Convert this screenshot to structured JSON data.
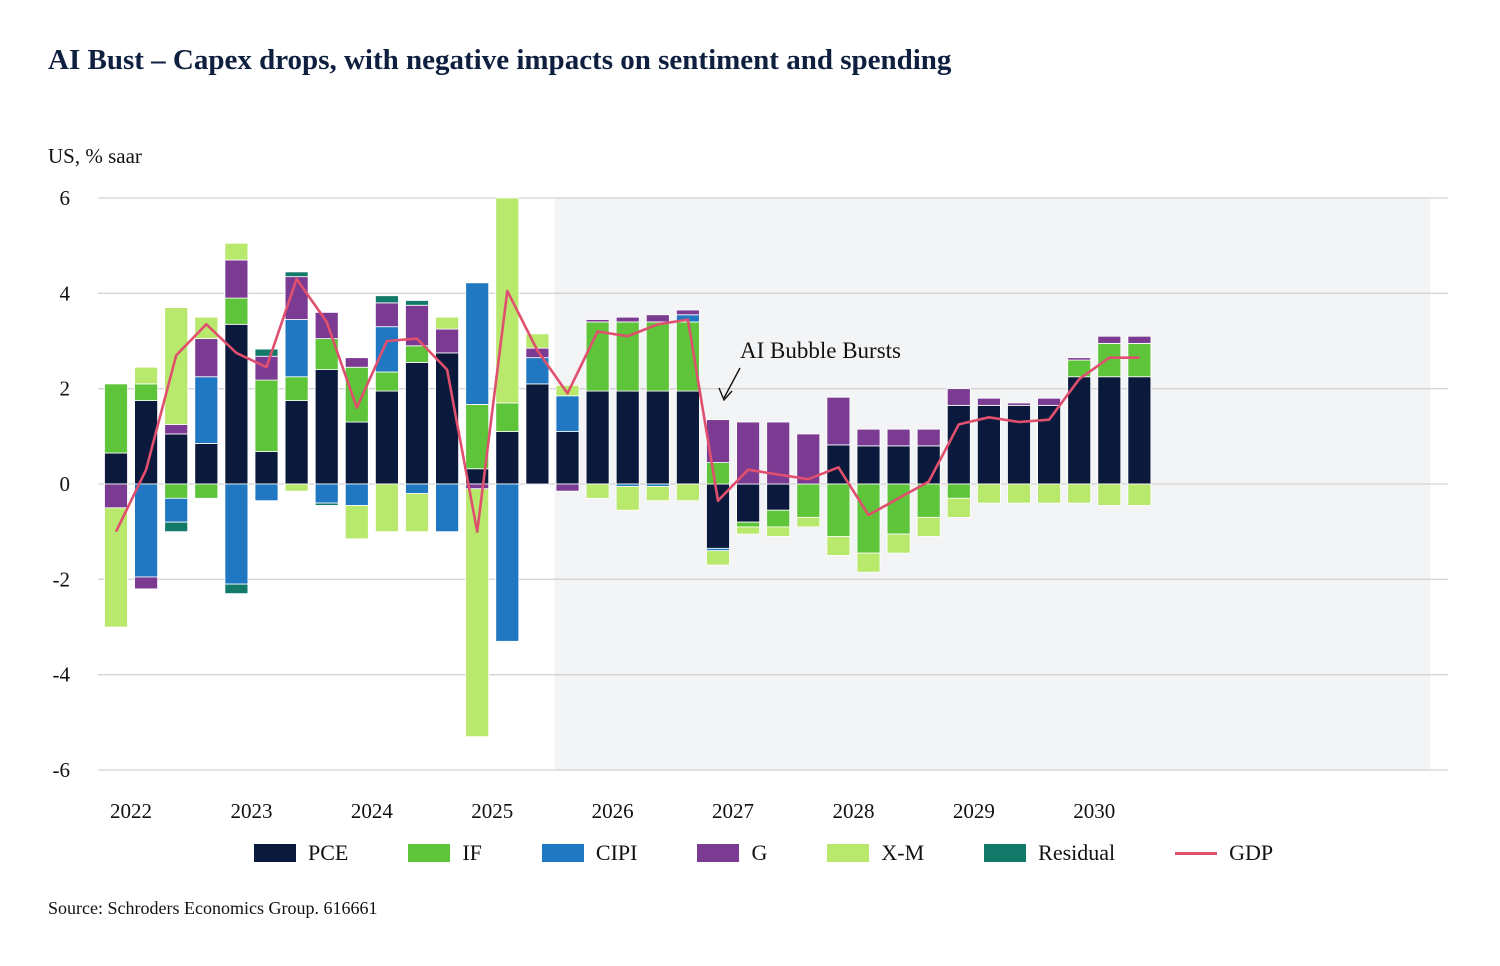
{
  "title": "AI Bust – Capex drops, with negative impacts on sentiment and spending",
  "unit_label": "US, % saar",
  "source": "Source: Schroders Economics Group. 616661",
  "colors": {
    "PCE": "#0b1a3c",
    "IF": "#5ec43a",
    "CIPI": "#1f78c1",
    "G": "#7c3b93",
    "X-M": "#b8e86c",
    "Residual": "#137a6a",
    "GDP": "#e0506e",
    "forecast_shade": "#f3f4f6",
    "grid": "#d4d4d4"
  },
  "chart_data": {
    "type": "bar",
    "stacked": true,
    "ylim": [
      -6,
      6
    ],
    "yticks": [
      6,
      4,
      2,
      0,
      -2,
      -4,
      -6
    ],
    "xtick_labels": [
      "2022",
      "2023",
      "2024",
      "2025",
      "2026",
      "2027",
      "2028",
      "2029",
      "2030"
    ],
    "forecast_start_index": 15,
    "annotation": {
      "text": "AI Bubble Bursts",
      "index": 20
    },
    "categories": [
      "2022Q1",
      "2022Q2",
      "2022Q3",
      "2022Q4",
      "2023Q1",
      "2023Q2",
      "2023Q3",
      "2023Q4",
      "2024Q1",
      "2024Q2",
      "2024Q3",
      "2024Q4",
      "2025Q1",
      "2025Q2",
      "2025Q3",
      "2025Q4",
      "2026Q1",
      "2026Q2",
      "2026Q3",
      "2026Q4",
      "2027Q1",
      "2027Q2",
      "2027Q3",
      "2027Q4",
      "2028Q1",
      "2028Q2",
      "2028Q3",
      "2028Q4",
      "2029Q1",
      "2029Q2",
      "2029Q3",
      "2029Q4",
      "2030Q1",
      "2030Q2",
      "2030Q3"
    ],
    "series": [
      {
        "name": "PCE",
        "values": [
          0.65,
          1.75,
          1.05,
          0.85,
          3.35,
          0.68,
          1.75,
          2.4,
          1.3,
          1.95,
          2.55,
          2.75,
          0.32,
          1.1,
          2.1,
          1.1,
          1.95,
          1.95,
          1.95,
          1.95,
          -1.35,
          -0.8,
          -0.55,
          0.0,
          0.82,
          0.8,
          0.8,
          0.8,
          1.65,
          1.65,
          1.65,
          1.65,
          2.25,
          2.25,
          2.25
        ]
      },
      {
        "name": "IF",
        "values": [
          1.45,
          0.35,
          -0.3,
          -0.3,
          0.55,
          1.5,
          0.5,
          0.65,
          1.15,
          0.4,
          0.35,
          0.0,
          1.35,
          0.6,
          0.0,
          0.0,
          1.45,
          1.45,
          1.45,
          1.45,
          0.45,
          -0.1,
          -0.35,
          -0.7,
          -1.1,
          -1.45,
          -1.05,
          -0.7,
          -0.3,
          0.0,
          0.0,
          0.0,
          0.35,
          0.7,
          0.7
        ]
      },
      {
        "name": "CIPI",
        "values": [
          0.0,
          -1.95,
          -0.5,
          1.4,
          -2.1,
          -0.35,
          1.2,
          -0.4,
          -0.45,
          0.95,
          -0.2,
          -1.0,
          2.55,
          -3.3,
          0.55,
          0.75,
          0.0,
          -0.05,
          -0.05,
          0.15,
          -0.05,
          0.0,
          0.0,
          0.0,
          0.0,
          0.0,
          0.0,
          0.0,
          0.0,
          0.0,
          0.0,
          0.0,
          0.0,
          0.0,
          0.0
        ]
      },
      {
        "name": "G",
        "values": [
          -0.5,
          -0.25,
          0.2,
          0.8,
          0.8,
          0.5,
          0.9,
          0.55,
          0.2,
          0.5,
          0.85,
          0.5,
          -0.1,
          0.0,
          0.2,
          -0.15,
          0.05,
          0.1,
          0.15,
          0.1,
          0.9,
          1.3,
          1.3,
          1.05,
          1.0,
          0.35,
          0.35,
          0.35,
          0.35,
          0.15,
          0.05,
          0.15,
          0.05,
          0.15,
          0.15
        ]
      },
      {
        "name": "X-M",
        "values": [
          -2.5,
          0.35,
          2.45,
          0.45,
          0.35,
          0.0,
          -0.15,
          0.0,
          -0.7,
          -1.0,
          -0.8,
          0.25,
          -5.2,
          4.3,
          0.3,
          0.22,
          -0.3,
          -0.5,
          -0.3,
          -0.35,
          -0.3,
          -0.15,
          -0.2,
          -0.2,
          -0.4,
          -0.4,
          -0.4,
          -0.4,
          -0.4,
          -0.4,
          -0.4,
          -0.4,
          -0.4,
          -0.45,
          -0.45
        ]
      },
      {
        "name": "Residual",
        "values": [
          0.0,
          0.0,
          -0.2,
          0.0,
          -0.2,
          0.15,
          0.1,
          -0.05,
          0.0,
          0.15,
          0.1,
          0.0,
          0.0,
          0.0,
          0.0,
          0.0,
          0.0,
          0.0,
          0.0,
          0.0,
          0.0,
          0.0,
          0.0,
          0.0,
          0.0,
          0.0,
          0.0,
          0.0,
          0.0,
          0.0,
          0.0,
          0.0,
          0.0,
          0.0,
          0.0
        ]
      }
    ],
    "line_series": {
      "name": "GDP",
      "values": [
        -1.0,
        0.3,
        2.7,
        3.35,
        2.75,
        2.45,
        4.3,
        3.4,
        1.6,
        3.0,
        3.05,
        2.4,
        -1.0,
        4.05,
        2.8,
        1.9,
        3.2,
        3.1,
        3.35,
        3.45,
        -0.35,
        0.3,
        0.2,
        0.1,
        0.35,
        -0.65,
        -0.3,
        0.05,
        1.25,
        1.4,
        1.3,
        1.35,
        2.2,
        2.65,
        2.65
      ]
    }
  },
  "legend": [
    {
      "label": "PCE",
      "kind": "box",
      "color": "#0b1a3c"
    },
    {
      "label": "IF",
      "kind": "box",
      "color": "#5ec43a"
    },
    {
      "label": "CIPI",
      "kind": "box",
      "color": "#1f78c1"
    },
    {
      "label": "G",
      "kind": "box",
      "color": "#7c3b93"
    },
    {
      "label": "X-M",
      "kind": "box",
      "color": "#b8e86c"
    },
    {
      "label": "Residual",
      "kind": "box",
      "color": "#137a6a"
    },
    {
      "label": "GDP",
      "kind": "line",
      "color": "#e0506e"
    }
  ]
}
